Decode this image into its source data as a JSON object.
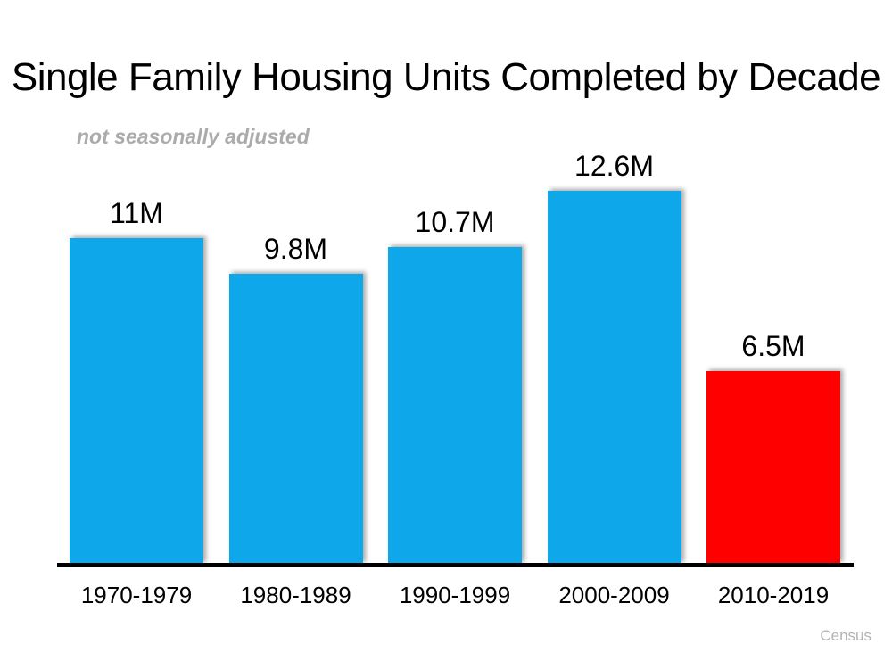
{
  "slide": {
    "title": "Single Family Housing Units Completed by Decade",
    "subtitle": "not seasonally adjusted",
    "source": "Census"
  },
  "chart_data": {
    "type": "bar",
    "title": "Single Family Housing Units Completed by Decade",
    "subtitle": "not seasonally adjusted",
    "source": "Census",
    "categories": [
      "1970-1979",
      "1980-1989",
      "1990-1999",
      "2000-2009",
      "2010-2019"
    ],
    "values": [
      11,
      9.8,
      10.7,
      12.6,
      6.5
    ],
    "data_labels": [
      "11M",
      "9.8M",
      "10.7M",
      "12.6M",
      "6.5M"
    ],
    "unit": "millions of units",
    "bar_colors": [
      "#0EA8EA",
      "#0EA8EA",
      "#0EA8EA",
      "#0EA8EA",
      "#FE0000"
    ],
    "highlight_index": 4,
    "colors": {
      "bar_default": "#0EA8EA",
      "bar_highlight": "#FE0000",
      "axis": "#000000",
      "title": "#000000",
      "subtitle": "#ABABAB",
      "source": "#B3B3B3"
    },
    "ylim": [
      0,
      13
    ],
    "grid": false,
    "legend": false,
    "xlabel": "",
    "ylabel": ""
  }
}
